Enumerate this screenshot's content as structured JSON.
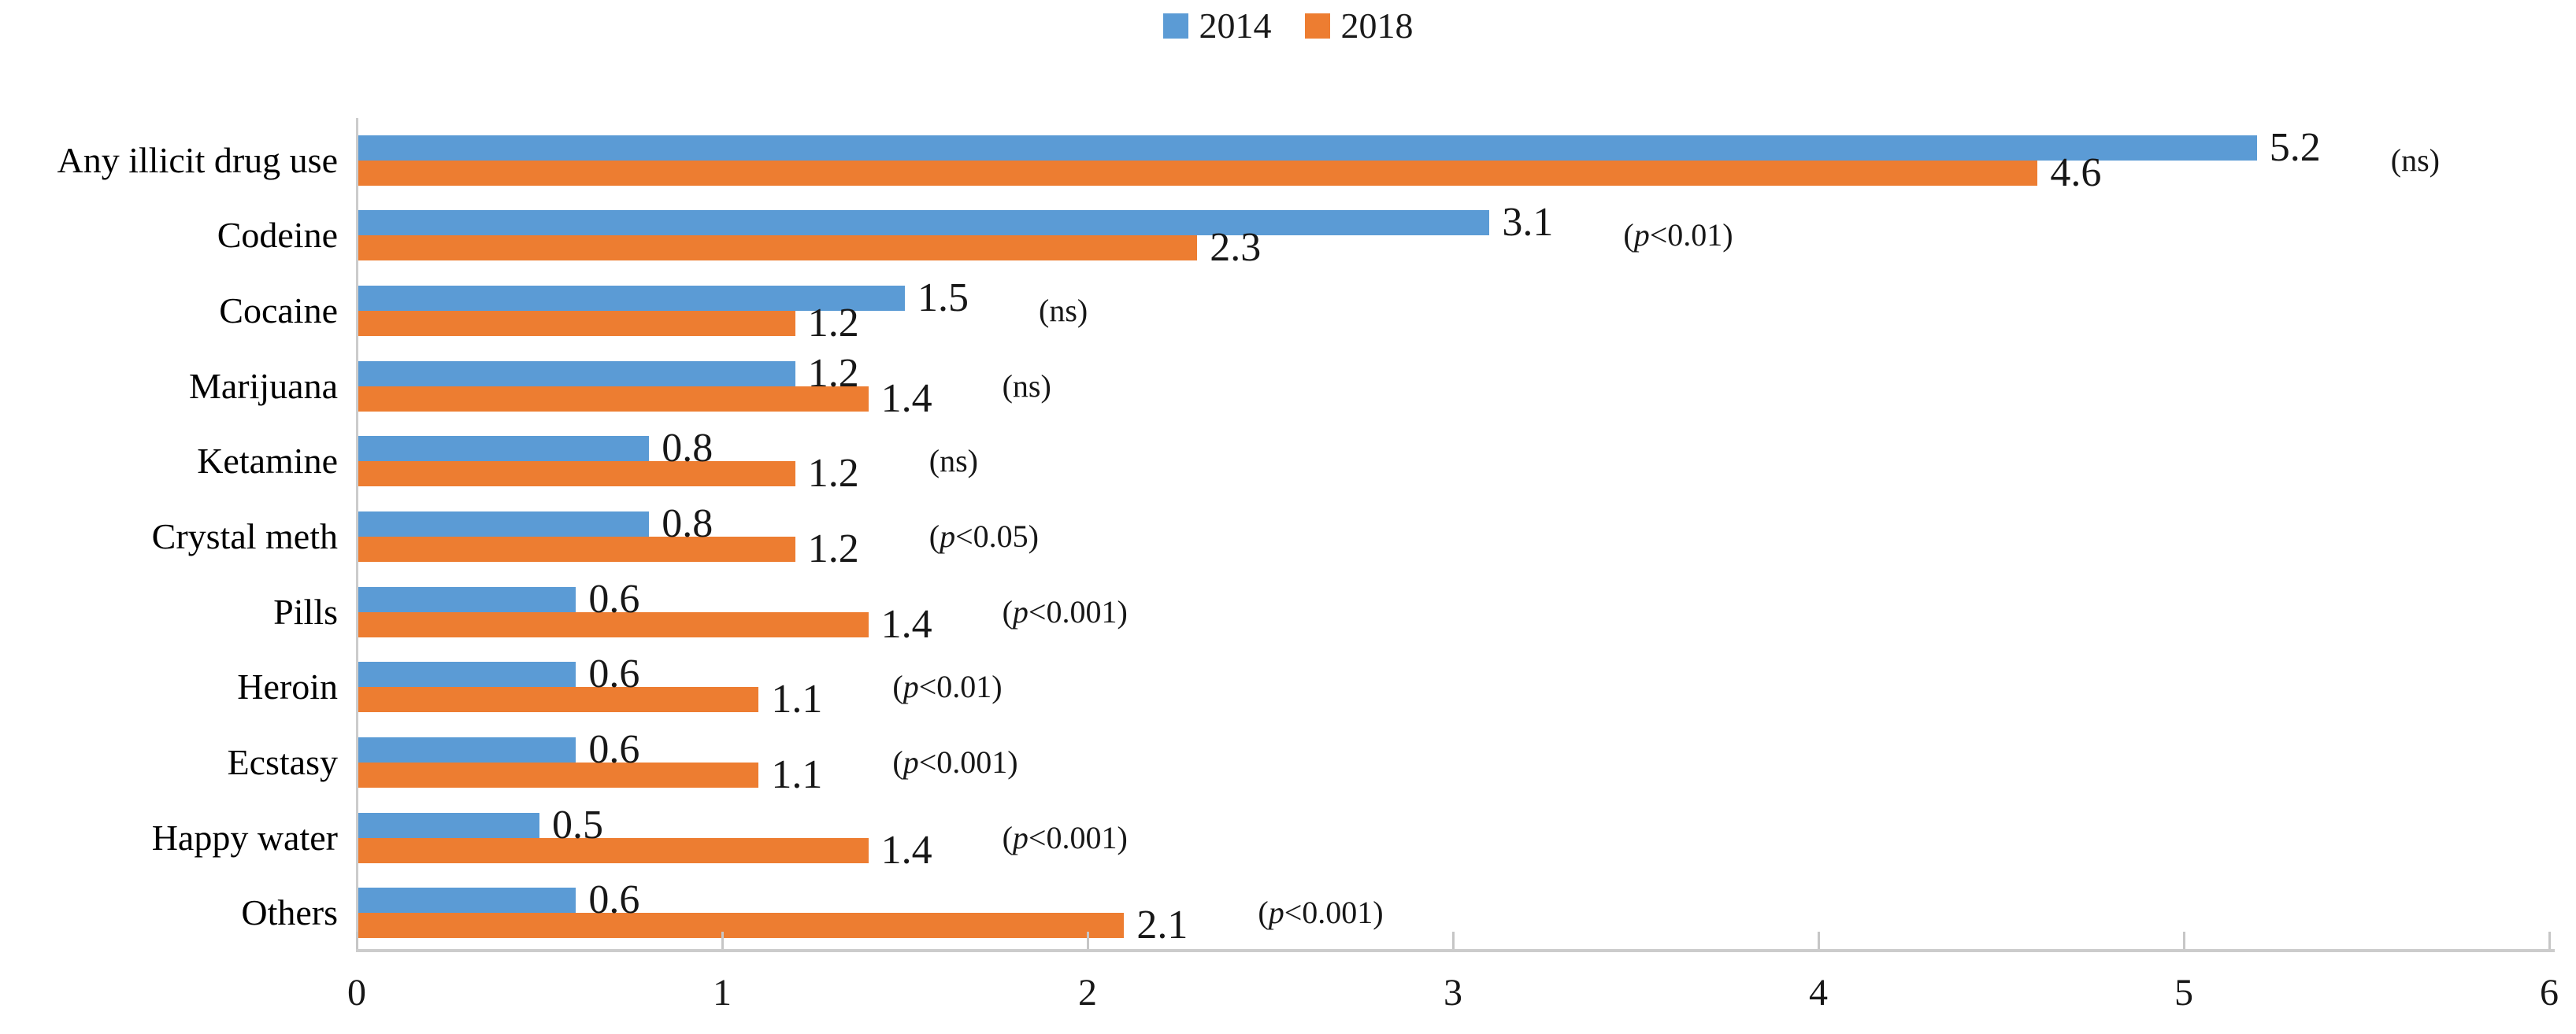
{
  "chart_data": {
    "type": "bar",
    "orientation": "horizontal",
    "title": "",
    "categories": [
      "Any illicit drug use",
      "Codeine",
      "Cocaine",
      "Marijuana",
      "Ketamine",
      "Crystal meth",
      "Pills",
      "Heroin",
      "Ecstasy",
      "Happy water",
      "Others"
    ],
    "series": [
      {
        "name": "2014",
        "color": "#5B9BD5",
        "values": [
          5.2,
          3.1,
          1.5,
          1.2,
          0.8,
          0.8,
          0.6,
          0.6,
          0.6,
          0.5,
          0.6
        ]
      },
      {
        "name": "2018",
        "color": "#ED7D31",
        "values": [
          4.6,
          2.3,
          1.2,
          1.4,
          1.2,
          1.2,
          1.4,
          1.1,
          1.1,
          1.4,
          2.1
        ]
      }
    ],
    "significance_labels": [
      "(ns)",
      "(p<0.01)",
      "(ns)",
      "(ns)",
      "(ns)",
      "(p<0.05)",
      "(p<0.001)",
      "(p<0.01)",
      "(p<0.001)",
      "(p<0.001)",
      "(p<0.001)"
    ],
    "xlabel": "",
    "ylabel": "",
    "xlim": [
      0,
      6
    ],
    "x_ticks": [
      0,
      1,
      2,
      3,
      4,
      5,
      6
    ],
    "value_label_decimals": 1,
    "grid": false,
    "legend_position": "top",
    "axis_color": "#cccccc",
    "text_color": "#171717"
  },
  "legend": {
    "items": [
      {
        "label": "2014",
        "color": "#5B9BD5"
      },
      {
        "label": "2018",
        "color": "#ED7D31"
      }
    ]
  }
}
